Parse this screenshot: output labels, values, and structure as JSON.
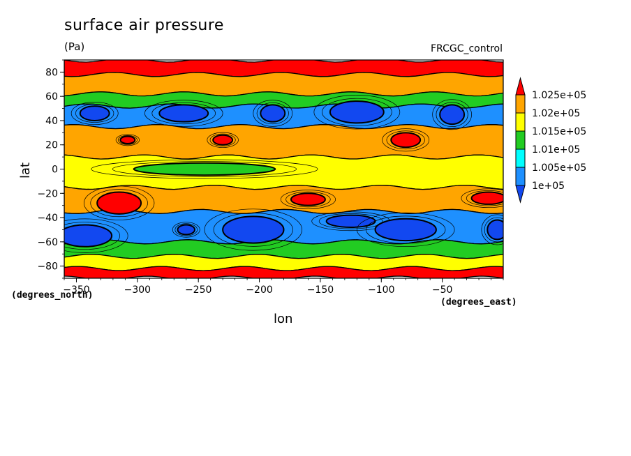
{
  "chart_data": {
    "type": "heatmap",
    "title": "surface air pressure",
    "units": "(Pa)",
    "subtitle": "FRCGC_control",
    "xlabel": "lon",
    "ylabel": "lat",
    "x_units_note": "(degrees_east)",
    "y_units_note": "(degrees_north)",
    "xlim": [
      -360,
      0
    ],
    "ylim": [
      -90,
      90
    ],
    "x_ticks": [
      -350,
      -300,
      -250,
      -200,
      -150,
      -100,
      -50
    ],
    "y_ticks": [
      -80,
      -60,
      -40,
      -20,
      0,
      20,
      40,
      60,
      80
    ],
    "x_tick_labels": [
      "−350",
      "−300",
      "−250",
      "−200",
      "−150",
      "−100",
      "−50"
    ],
    "y_tick_labels": [
      "−80",
      "−60",
      "−40",
      "−20",
      "0",
      "20",
      "40",
      "60",
      "80"
    ],
    "colorbar": {
      "levels": [
        "1.025e+05",
        "1.02e+05",
        "1.015e+05",
        "1.01e+05",
        "1.005e+05",
        "1e+05"
      ],
      "colors": [
        "#ff0000",
        "#ffa500",
        "#ffff00",
        "#22cc22",
        "#00ffff",
        "#1e90ff",
        "#1248f0"
      ]
    },
    "zonal_bands": [
      {
        "lat_range": [
          78,
          90
        ],
        "level_index": 0
      },
      {
        "lat_range": [
          62,
          78
        ],
        "level_index": 1
      },
      {
        "lat_range": [
          52,
          62
        ],
        "level_index": 3
      },
      {
        "lat_range": [
          35,
          52
        ],
        "level_index": 5
      },
      {
        "lat_range": [
          10,
          35
        ],
        "level_index": 1
      },
      {
        "lat_range": [
          -15,
          10
        ],
        "level_index": 2
      },
      {
        "lat_range": [
          -35,
          -15
        ],
        "level_index": 1
      },
      {
        "lat_range": [
          -60,
          -35
        ],
        "level_index": 5
      },
      {
        "lat_range": [
          -72,
          -60
        ],
        "level_index": 3
      },
      {
        "lat_range": [
          -82,
          -72
        ],
        "level_index": 2
      },
      {
        "lat_range": [
          -90,
          -82
        ],
        "level_index": 0
      }
    ],
    "cells": [
      {
        "lon": -335,
        "lat": 46,
        "rx": 12,
        "ry": 6,
        "level_index": 6
      },
      {
        "lon": -262,
        "lat": 46,
        "rx": 20,
        "ry": 7,
        "level_index": 6
      },
      {
        "lon": -189,
        "lat": 46,
        "rx": 10,
        "ry": 7,
        "level_index": 6
      },
      {
        "lon": -120,
        "lat": 47,
        "rx": 22,
        "ry": 9,
        "level_index": 6
      },
      {
        "lon": -42,
        "lat": 45,
        "rx": 10,
        "ry": 8,
        "level_index": 6
      },
      {
        "lon": -308,
        "lat": 24,
        "rx": 6,
        "ry": 3,
        "level_index": 0
      },
      {
        "lon": -230,
        "lat": 24,
        "rx": 8,
        "ry": 4,
        "level_index": 0
      },
      {
        "lon": -80,
        "lat": 24,
        "rx": 12,
        "ry": 6,
        "level_index": 0
      },
      {
        "lon": -245,
        "lat": 0,
        "rx": 58,
        "ry": 5,
        "level_index": 3
      },
      {
        "lon": -315,
        "lat": -28,
        "rx": 18,
        "ry": 9,
        "level_index": 0
      },
      {
        "lon": -160,
        "lat": -25,
        "rx": 14,
        "ry": 5,
        "level_index": 0
      },
      {
        "lon": -12,
        "lat": -24,
        "rx": 14,
        "ry": 5,
        "level_index": 0
      },
      {
        "lon": -343,
        "lat": -55,
        "rx": 22,
        "ry": 9,
        "level_index": 6
      },
      {
        "lon": -260,
        "lat": -50,
        "rx": 7,
        "ry": 4,
        "level_index": 6
      },
      {
        "lon": -205,
        "lat": -50,
        "rx": 25,
        "ry": 11,
        "level_index": 6
      },
      {
        "lon": -125,
        "lat": -43,
        "rx": 20,
        "ry": 5,
        "level_index": 6
      },
      {
        "lon": -80,
        "lat": -50,
        "rx": 25,
        "ry": 9,
        "level_index": 6
      },
      {
        "lon": -5,
        "lat": -50,
        "rx": 8,
        "ry": 8,
        "level_index": 6
      }
    ]
  }
}
